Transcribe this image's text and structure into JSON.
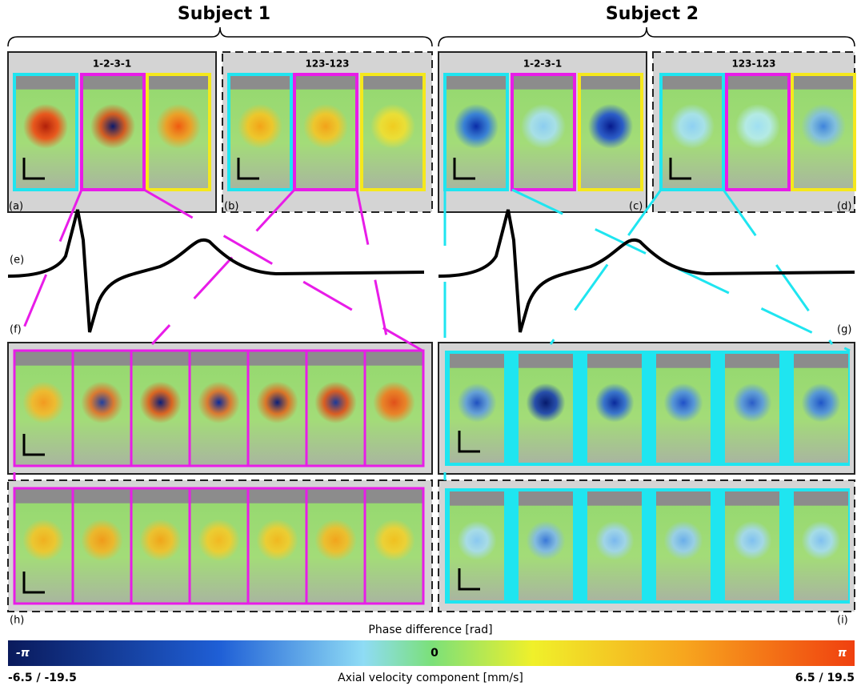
{
  "header": {
    "subjects": [
      "Subject 1",
      "Subject 2"
    ]
  },
  "panels": {
    "a": {
      "label": "(a)",
      "title": "1-2-3-1"
    },
    "b": {
      "label": "(b)",
      "title": "123-123"
    },
    "c": {
      "label": "(c)",
      "title": "1-2-3-1"
    },
    "d": {
      "label": "(d)",
      "title": "123-123"
    },
    "e": {
      "label": "(e)"
    },
    "f": {
      "label": "(f)"
    },
    "g": {
      "label": "(g)"
    },
    "h": {
      "label": "(h)"
    },
    "i": {
      "label": "(i)"
    }
  },
  "colorbar": {
    "title": "Phase difference [rad]",
    "min_label": "-π",
    "mid_label": "0",
    "max_label": "π",
    "min_velocity": "-6.5 / -19.5",
    "axis_label": "Axial velocity component [mm/s]",
    "max_velocity": "6.5 / 19.5"
  }
}
